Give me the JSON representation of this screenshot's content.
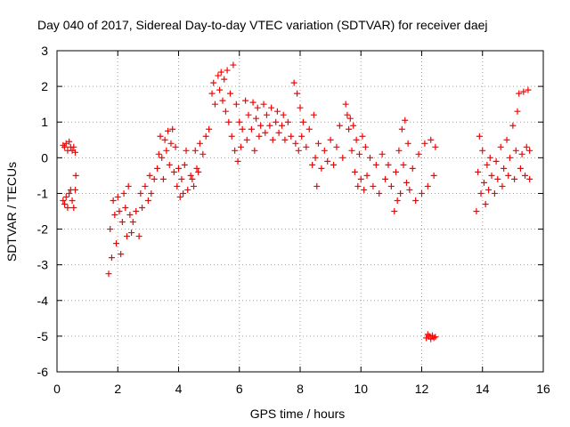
{
  "chart_data": {
    "type": "scatter",
    "title": "Day 040 of 2017, Sidereal Day-to-day VTEC variation (SDTVAR) for receiver daej",
    "xlabel": "GPS time / hours",
    "ylabel": "SDTVAR / TECUs",
    "xlim": [
      0,
      16
    ],
    "ylim": [
      -6,
      3
    ],
    "xticks": [
      "0",
      "2",
      "4",
      "6",
      "8",
      "10",
      "12",
      "14",
      "16"
    ],
    "yticks": [
      "-6",
      "-5",
      "-4",
      "-3",
      "-2",
      "-1",
      "0",
      "1",
      "2",
      "3"
    ],
    "grid": true,
    "marker": "+",
    "color": "#ff0000",
    "series": [
      {
        "points": [
          [
            0.2,
            0.35
          ],
          [
            0.25,
            0.3
          ],
          [
            0.3,
            0.4
          ],
          [
            0.35,
            0.2
          ],
          [
            0.4,
            0.45
          ],
          [
            0.45,
            0.3
          ],
          [
            0.5,
            0.2
          ],
          [
            0.55,
            0.3
          ],
          [
            0.6,
            0.15
          ],
          [
            0.2,
            -1.2
          ],
          [
            0.25,
            -1.3
          ],
          [
            0.3,
            -1.1
          ],
          [
            0.35,
            -1.4
          ],
          [
            0.4,
            -1.0
          ],
          [
            0.45,
            -0.9
          ],
          [
            0.5,
            -1.2
          ],
          [
            0.55,
            -1.4
          ],
          [
            0.6,
            -0.9
          ],
          [
            0.62,
            -0.5
          ],
          [
            1.7,
            -3.25
          ],
          [
            1.75,
            -2.0
          ],
          [
            1.8,
            -2.8
          ],
          [
            1.85,
            -1.2
          ],
          [
            1.9,
            -1.6
          ],
          [
            1.95,
            -2.4
          ],
          [
            2.0,
            -1.1
          ],
          [
            2.05,
            -1.5
          ],
          [
            2.1,
            -2.7
          ],
          [
            2.15,
            -1.8
          ],
          [
            2.2,
            -1.0
          ],
          [
            2.25,
            -1.4
          ],
          [
            2.3,
            -2.2
          ],
          [
            2.35,
            -0.8
          ],
          [
            2.4,
            -1.6
          ],
          [
            2.45,
            -2.1
          ],
          [
            2.5,
            -1.8
          ],
          [
            2.6,
            -1.5
          ],
          [
            2.7,
            -2.2
          ],
          [
            2.75,
            -1.0
          ],
          [
            2.8,
            -1.4
          ],
          [
            2.9,
            -0.8
          ],
          [
            3.0,
            -1.2
          ],
          [
            3.05,
            -0.5
          ],
          [
            3.1,
            -1.0
          ],
          [
            3.2,
            -0.6
          ],
          [
            3.3,
            -0.3
          ],
          [
            3.35,
            0.1
          ],
          [
            3.4,
            0.6
          ],
          [
            3.45,
            0.0
          ],
          [
            3.5,
            -0.6
          ],
          [
            3.55,
            0.5
          ],
          [
            3.6,
            0.2
          ],
          [
            3.65,
            0.75
          ],
          [
            3.7,
            -0.2
          ],
          [
            3.75,
            0.4
          ],
          [
            3.8,
            0.8
          ],
          [
            3.85,
            -0.4
          ],
          [
            3.9,
            0.3
          ],
          [
            3.95,
            -0.8
          ],
          [
            4.0,
            -0.3
          ],
          [
            4.05,
            -1.1
          ],
          [
            4.1,
            -0.6
          ],
          [
            4.15,
            -1.0
          ],
          [
            4.2,
            -0.2
          ],
          [
            4.3,
            -0.9
          ],
          [
            4.4,
            -0.5
          ],
          [
            4.5,
            -0.8
          ],
          [
            4.55,
            0.2
          ],
          [
            4.6,
            -0.3
          ],
          [
            4.7,
            0.4
          ],
          [
            4.8,
            0.1
          ],
          [
            4.9,
            0.6
          ],
          [
            5.0,
            0.8
          ],
          [
            4.25,
            0.2
          ],
          [
            4.45,
            -0.6
          ],
          [
            4.65,
            -0.4
          ],
          [
            5.1,
            1.8
          ],
          [
            5.15,
            2.1
          ],
          [
            5.2,
            1.5
          ],
          [
            5.3,
            2.3
          ],
          [
            5.35,
            1.9
          ],
          [
            5.4,
            2.4
          ],
          [
            5.45,
            1.6
          ],
          [
            5.5,
            2.2
          ],
          [
            5.55,
            1.3
          ],
          [
            5.6,
            2.45
          ],
          [
            5.65,
            1.0
          ],
          [
            5.7,
            1.8
          ],
          [
            5.75,
            0.6
          ],
          [
            5.8,
            2.6
          ],
          [
            5.85,
            0.2
          ],
          [
            5.9,
            1.5
          ],
          [
            5.95,
            -0.1
          ],
          [
            6.0,
            1.0
          ],
          [
            6.05,
            0.3
          ],
          [
            6.1,
            0.8
          ],
          [
            6.2,
            1.6
          ],
          [
            6.25,
            0.5
          ],
          [
            6.3,
            1.2
          ],
          [
            6.4,
            0.8
          ],
          [
            6.45,
            1.55
          ],
          [
            6.5,
            0.2
          ],
          [
            6.55,
            1.1
          ],
          [
            6.6,
            1.4
          ],
          [
            6.65,
            0.6
          ],
          [
            6.7,
            0.9
          ],
          [
            6.8,
            1.5
          ],
          [
            6.85,
            0.7
          ],
          [
            6.9,
            1.2
          ],
          [
            7.0,
            0.9
          ],
          [
            7.05,
            1.4
          ],
          [
            7.1,
            0.5
          ],
          [
            7.2,
            1.0
          ],
          [
            7.25,
            1.3
          ],
          [
            7.3,
            0.7
          ],
          [
            7.4,
            0.9
          ],
          [
            7.45,
            1.2
          ],
          [
            7.5,
            0.5
          ],
          [
            7.6,
            1.0
          ],
          [
            7.7,
            0.6
          ],
          [
            7.8,
            2.1
          ],
          [
            7.85,
            0.4
          ],
          [
            7.9,
            1.8
          ],
          [
            7.95,
            0.2
          ],
          [
            8.0,
            1.4
          ],
          [
            8.05,
            0.6
          ],
          [
            8.1,
            1.0
          ],
          [
            8.2,
            0.3
          ],
          [
            8.3,
            0.8
          ],
          [
            8.4,
            -0.2
          ],
          [
            8.45,
            1.2
          ],
          [
            8.5,
            0.0
          ],
          [
            8.55,
            -0.8
          ],
          [
            8.6,
            0.4
          ],
          [
            8.7,
            -0.3
          ],
          [
            8.8,
            0.2
          ],
          [
            8.9,
            -0.1
          ],
          [
            9.0,
            0.5
          ],
          [
            9.1,
            -0.2
          ],
          [
            9.2,
            0.3
          ],
          [
            9.3,
            0.9
          ],
          [
            9.4,
            0.0
          ],
          [
            9.5,
            1.5
          ],
          [
            9.55,
            1.2
          ],
          [
            9.6,
            0.8
          ],
          [
            9.65,
            1.1
          ],
          [
            9.7,
            0.2
          ],
          [
            9.75,
            0.9
          ],
          [
            9.8,
            -0.4
          ],
          [
            9.85,
            0.5
          ],
          [
            9.9,
            -0.8
          ],
          [
            9.95,
            0.1
          ],
          [
            10.0,
            -0.6
          ],
          [
            10.05,
            0.6
          ],
          [
            10.1,
            -0.9
          ],
          [
            10.15,
            0.3
          ],
          [
            10.2,
            -0.5
          ],
          [
            10.3,
            0.0
          ],
          [
            10.4,
            -0.8
          ],
          [
            10.5,
            -0.2
          ],
          [
            10.6,
            -1.0
          ],
          [
            10.7,
            0.1
          ],
          [
            10.8,
            -0.6
          ],
          [
            10.9,
            -0.2
          ],
          [
            11.0,
            -0.8
          ],
          [
            11.1,
            -1.5
          ],
          [
            11.15,
            -0.4
          ],
          [
            11.2,
            -1.2
          ],
          [
            11.25,
            0.2
          ],
          [
            11.3,
            -1.0
          ],
          [
            11.35,
            0.8
          ],
          [
            11.4,
            -0.2
          ],
          [
            11.45,
            1.05
          ],
          [
            11.5,
            -0.7
          ],
          [
            11.55,
            0.4
          ],
          [
            11.6,
            -0.9
          ],
          [
            11.7,
            -0.3
          ],
          [
            11.8,
            -1.2
          ],
          [
            11.9,
            0.1
          ],
          [
            12.0,
            -1.0
          ],
          [
            12.1,
            0.4
          ],
          [
            12.2,
            -0.8
          ],
          [
            12.3,
            0.5
          ],
          [
            12.4,
            -0.5
          ],
          [
            12.45,
            0.3
          ],
          [
            12.15,
            -5.05
          ],
          [
            12.2,
            -4.95
          ],
          [
            12.25,
            -5.0
          ],
          [
            12.3,
            -5.08
          ],
          [
            12.35,
            -4.98
          ],
          [
            12.4,
            -5.05
          ],
          [
            12.45,
            -5.02
          ],
          [
            13.8,
            -1.5
          ],
          [
            13.85,
            -0.4
          ],
          [
            13.9,
            0.6
          ],
          [
            13.95,
            -1.0
          ],
          [
            14.0,
            0.2
          ],
          [
            14.05,
            -0.7
          ],
          [
            14.1,
            -1.3
          ],
          [
            14.15,
            -0.2
          ],
          [
            14.2,
            -0.9
          ],
          [
            14.25,
            0.0
          ],
          [
            14.3,
            -0.5
          ],
          [
            14.4,
            -1.0
          ],
          [
            14.45,
            -0.1
          ],
          [
            14.5,
            -0.6
          ],
          [
            14.6,
            0.3
          ],
          [
            14.65,
            -0.8
          ],
          [
            14.7,
            -0.3
          ],
          [
            14.8,
            0.5
          ],
          [
            14.85,
            -0.5
          ],
          [
            14.9,
            0.0
          ],
          [
            15.0,
            0.9
          ],
          [
            15.05,
            -0.6
          ],
          [
            15.1,
            0.2
          ],
          [
            15.15,
            1.3
          ],
          [
            15.2,
            1.8
          ],
          [
            15.25,
            -0.3
          ],
          [
            15.3,
            0.1
          ],
          [
            15.35,
            1.85
          ],
          [
            15.4,
            -0.5
          ],
          [
            15.45,
            0.3
          ],
          [
            15.5,
            1.9
          ],
          [
            15.55,
            -0.6
          ],
          [
            15.55,
            0.2
          ]
        ]
      }
    ]
  }
}
